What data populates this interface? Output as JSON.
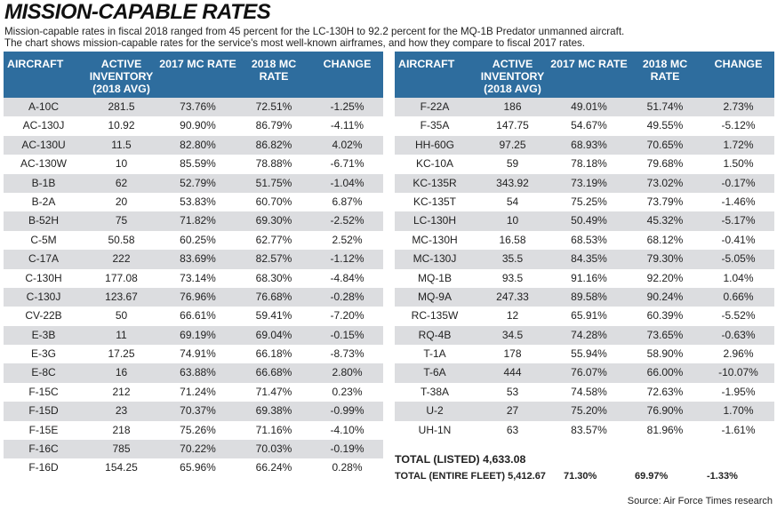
{
  "title": "MISSION-CAPABLE RATES",
  "subtitle": [
    "Mission-capable rates in fiscal 2018 ranged from 45 percent for the LC-130H  to 92.2 percent for the MQ-1B Predator unmanned aircraft.",
    "The chart shows mission-capable rates for the service's most well-known airframes, and how they compare to fiscal 2017 rates."
  ],
  "columns": [
    "AIRCRAFT",
    "ACTIVE INVENTORY (2018 AVG)",
    "2017 MC RATE",
    "2018 MC RATE",
    "CHANGE"
  ],
  "header_color": "#2e6d9e",
  "left_rows": [
    [
      "A-10C",
      "281.5",
      "73.76%",
      "72.51%",
      "-1.25%"
    ],
    [
      "AC-130J",
      "10.92",
      "90.90%",
      "86.79%",
      "-4.11%"
    ],
    [
      "AC-130U",
      "11.5",
      "82.80%",
      "86.82%",
      "4.02%"
    ],
    [
      "AC-130W",
      "10",
      "85.59%",
      "78.88%",
      "-6.71%"
    ],
    [
      "B-1B",
      "62",
      "52.79%",
      "51.75%",
      "-1.04%"
    ],
    [
      "B-2A",
      "20",
      "53.83%",
      "60.70%",
      "6.87%"
    ],
    [
      "B-52H",
      "75",
      "71.82%",
      "69.30%",
      "-2.52%"
    ],
    [
      "C-5M",
      "50.58",
      "60.25%",
      "62.77%",
      "2.52%"
    ],
    [
      "C-17A",
      "222",
      "83.69%",
      "82.57%",
      "-1.12%"
    ],
    [
      "C-130H",
      "177.08",
      "73.14%",
      "68.30%",
      "-4.84%"
    ],
    [
      "C-130J",
      "123.67",
      "76.96%",
      "76.68%",
      "-0.28%"
    ],
    [
      "CV-22B",
      "50",
      "66.61%",
      "59.41%",
      "-7.20%"
    ],
    [
      "E-3B",
      "11",
      "69.19%",
      "69.04%",
      "-0.15%"
    ],
    [
      "E-3G",
      "17.25",
      "74.91%",
      "66.18%",
      "-8.73%"
    ],
    [
      "E-8C",
      "16",
      "63.88%",
      "66.68%",
      "2.80%"
    ],
    [
      "F-15C",
      "212",
      "71.24%",
      "71.47%",
      "0.23%"
    ],
    [
      "F-15D",
      "23",
      "70.37%",
      "69.38%",
      "-0.99%"
    ],
    [
      "F-15E",
      "218",
      "75.26%",
      "71.16%",
      "-4.10%"
    ],
    [
      "F-16C",
      "785",
      "70.22%",
      "70.03%",
      "-0.19%"
    ],
    [
      "F-16D",
      "154.25",
      "65.96%",
      "66.24%",
      "0.28%"
    ]
  ],
  "right_rows": [
    [
      "F-22A",
      "186",
      "49.01%",
      "51.74%",
      "2.73%"
    ],
    [
      "F-35A",
      "147.75",
      "54.67%",
      "49.55%",
      "-5.12%"
    ],
    [
      "HH-60G",
      "97.25",
      "68.93%",
      "70.65%",
      "1.72%"
    ],
    [
      "KC-10A",
      "59",
      "78.18%",
      "79.68%",
      "1.50%"
    ],
    [
      "KC-135R",
      "343.92",
      "73.19%",
      "73.02%",
      "-0.17%"
    ],
    [
      "KC-135T",
      "54",
      "75.25%",
      "73.79%",
      "-1.46%"
    ],
    [
      "LC-130H",
      "10",
      "50.49%",
      "45.32%",
      "-5.17%"
    ],
    [
      "MC-130H",
      "16.58",
      "68.53%",
      "68.12%",
      "-0.41%"
    ],
    [
      "MC-130J",
      "35.5",
      "84.35%",
      "79.30%",
      "-5.05%"
    ],
    [
      "MQ-1B",
      "93.5",
      "91.16%",
      "92.20%",
      "1.04%"
    ],
    [
      "MQ-9A",
      "247.33",
      "89.58%",
      "90.24%",
      "0.66%"
    ],
    [
      "RC-135W",
      "12",
      "65.91%",
      "60.39%",
      "-5.52%"
    ],
    [
      "RQ-4B",
      "34.5",
      "74.28%",
      "73.65%",
      "-0.63%"
    ],
    [
      "T-1A",
      "178",
      "55.94%",
      "58.90%",
      "2.96%"
    ],
    [
      "T-6A",
      "444",
      "76.07%",
      "66.00%",
      "-10.07%"
    ],
    [
      "T-38A",
      "53",
      "74.58%",
      "72.63%",
      "-1.95%"
    ],
    [
      "U-2",
      "27",
      "75.20%",
      "76.90%",
      "1.70%"
    ],
    [
      "UH-1N",
      "63",
      "83.57%",
      "81.96%",
      "-1.61%"
    ]
  ],
  "totals": {
    "listed": "TOTAL (LISTED) 4,633.08",
    "fleet_label": "TOTAL (ENTIRE FLEET) 5,412.67",
    "fleet_2017": "71.30%",
    "fleet_2018": "69.97%",
    "fleet_change": "-1.33%"
  },
  "source": "Source: Air Force Times research"
}
